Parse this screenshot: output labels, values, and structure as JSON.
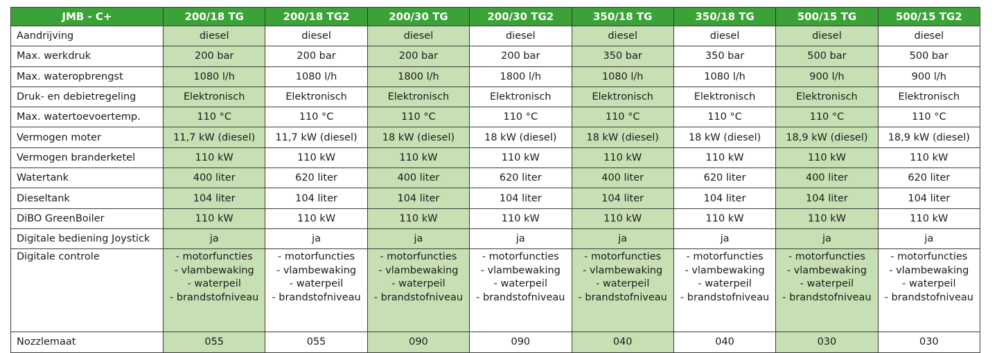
{
  "table": {
    "corner_label": "JMB - C+",
    "columns": [
      "200/18 TG",
      "200/18 TG2",
      "200/30 TG",
      "200/30 TG2",
      "350/18 TG",
      "350/18 TG",
      "500/15 TG",
      "500/15 TG2"
    ],
    "rows": [
      {
        "label": "Aandrijving",
        "values": [
          "diesel",
          "diesel",
          "diesel",
          "diesel",
          "diesel",
          "diesel",
          "diesel",
          "diesel"
        ]
      },
      {
        "label": "Max. werkdruk",
        "values": [
          "200 bar",
          "200 bar",
          "200 bar",
          "200 bar",
          "350 bar",
          "350 bar",
          "500 bar",
          "500 bar"
        ]
      },
      {
        "label": "Max. wateropbrengst",
        "values": [
          "1080 l/h",
          "1080 l/h",
          "1800 l/h",
          "1800 l/h",
          "1080 l/h",
          "1080 l/h",
          "900 l/h",
          "900 l/h"
        ]
      },
      {
        "label": "Druk- en debietregeling",
        "values": [
          "Elektronisch",
          "Elektronisch",
          "Elektronisch",
          "Elektronisch",
          "Elektronisch",
          "Elektronisch",
          "Elektronisch",
          "Elektronisch"
        ]
      },
      {
        "label": "Max. watertoevoertemp.",
        "values": [
          "110 °C",
          "110 °C",
          "110 °C",
          "110 °C",
          "110 °C",
          "110 °C",
          "110 °C",
          "110 °C"
        ]
      },
      {
        "label": "Vermogen moter",
        "values": [
          "11,7 kW (diesel)",
          "11,7 kW (diesel)",
          "18 kW (diesel)",
          "18 kW (diesel)",
          "18 kW (diesel)",
          "18 kW (diesel)",
          "18,9 kW (diesel)",
          "18,9 kW (diesel)"
        ]
      },
      {
        "label": "Vermogen branderketel",
        "values": [
          "110 kW",
          "110 kW",
          "110 kW",
          "110 kW",
          "110 kW",
          "110 kW",
          "110 kW",
          "110 kW"
        ]
      },
      {
        "label": "Watertank",
        "values": [
          "400 liter",
          "620 liter",
          "400 liter",
          "620 liter",
          "400 liter",
          "620 liter",
          "400 liter",
          "620 liter"
        ]
      },
      {
        "label": "Dieseltank",
        "values": [
          "104 liter",
          "104 liter",
          "104 liter",
          "104 liter",
          "104 liter",
          "104 liter",
          "104 liter",
          "104 liter"
        ]
      },
      {
        "label": "DiBO GreenBoiler",
        "values": [
          "110 kW",
          "110 kW",
          "110 kW",
          "110 kW",
          "110 kW",
          "110 kW",
          "110 kW",
          "110 kW"
        ]
      },
      {
        "label": "Digitale bediening Joystick",
        "values": [
          "ja",
          "ja",
          "ja",
          "ja",
          "ja",
          "ja",
          "ja",
          "ja"
        ]
      }
    ],
    "digital_control": {
      "label": "Digitale controle",
      "lines": [
        "- motorfuncties",
        "- vlambewaking",
        "- waterpeil",
        "- brandstofniveau"
      ]
    },
    "nozzle": {
      "label": "Nozzlemaat",
      "values": [
        "055",
        "055",
        "090",
        "090",
        "040",
        "040",
        "030",
        "030"
      ]
    }
  },
  "colors": {
    "header_green": "#3aa236",
    "highlight_green": "#c6e0b4",
    "border": "#3a3a3a"
  }
}
